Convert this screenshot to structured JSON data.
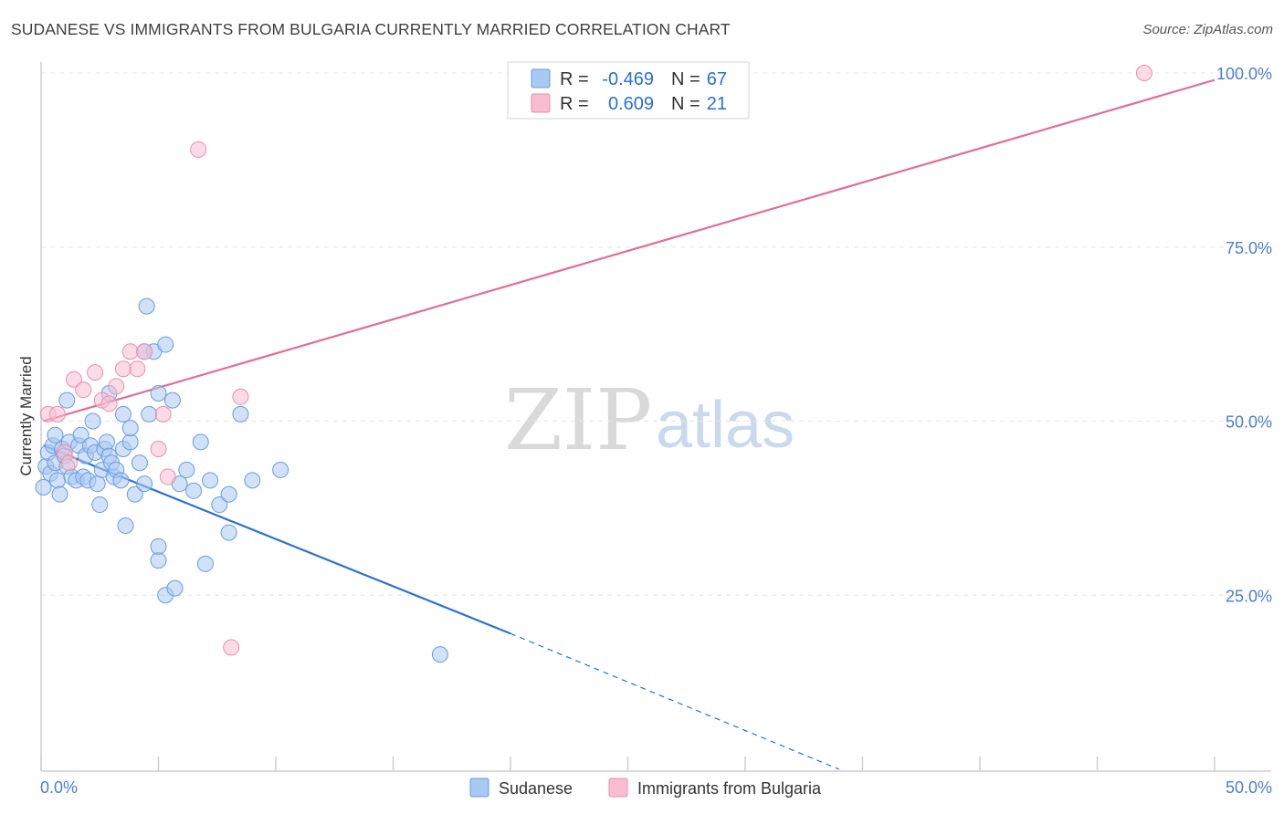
{
  "title": "SUDANESE VS IMMIGRANTS FROM BULGARIA CURRENTLY MARRIED CORRELATION CHART",
  "source": "Source: ZipAtlas.com",
  "watermark": {
    "zip": "ZIP",
    "atlas": "atlas"
  },
  "colors": {
    "blue_fill": "#a9c8f2",
    "blue_stroke": "#6a9de0",
    "blue_line": "#2a72d6",
    "pink_fill": "#f8bdd0",
    "pink_stroke": "#ea8fb0",
    "pink_line": "#e26d98",
    "grid": "#e4e4e4",
    "axis": "#cfcfcf",
    "tick_text": "#4a7fd0"
  },
  "stats": [
    {
      "r_label": "R =",
      "r_value": "-0.469",
      "n_label": "N =",
      "n_value": "67"
    },
    {
      "r_label": "R =",
      "r_value": "0.609",
      "n_label": "N =",
      "n_value": "21"
    }
  ],
  "chart_data": {
    "type": "scatter",
    "title": "SUDANESE VS IMMIGRANTS FROM BULGARIA CURRENTLY MARRIED CORRELATION CHART",
    "xlabel": "",
    "ylabel": "Currently Married",
    "xlim": [
      0,
      50
    ],
    "ylim": [
      0,
      102
    ],
    "x_tick_labels": [
      "0.0%",
      "50.0%"
    ],
    "y_ticks": [
      25,
      50,
      75,
      100
    ],
    "y_tick_labels": [
      "25.0%",
      "50.0%",
      "75.0%",
      "100.0%"
    ],
    "grid": true,
    "legend": [
      "Sudanese",
      "Immigrants from Bulgaria"
    ],
    "series": [
      {
        "name": "Sudanese",
        "r": -0.469,
        "n": 67,
        "trend": {
          "x_start": 0.1,
          "y_start": 46.5,
          "x_solid_end": 20,
          "y_solid_end": 19.5,
          "x_dash_end": 34,
          "y_dash_end": 0
        },
        "points": [
          [
            0.1,
            40.5
          ],
          [
            0.2,
            43.5
          ],
          [
            0.3,
            45.5
          ],
          [
            0.4,
            42.5
          ],
          [
            0.5,
            46.5
          ],
          [
            0.6,
            44
          ],
          [
            0.7,
            41.5
          ],
          [
            0.8,
            39.5
          ],
          [
            0.9,
            46
          ],
          [
            1.0,
            45
          ],
          [
            1.1,
            43.5
          ],
          [
            1.2,
            47
          ],
          [
            1.3,
            42
          ],
          [
            1.5,
            41.5
          ],
          [
            1.6,
            46.5
          ],
          [
            1.7,
            48
          ],
          [
            1.8,
            42
          ],
          [
            1.9,
            45
          ],
          [
            2.0,
            41.5
          ],
          [
            2.1,
            46.5
          ],
          [
            2.3,
            45.5
          ],
          [
            2.4,
            41
          ],
          [
            2.5,
            38
          ],
          [
            2.6,
            43
          ],
          [
            2.7,
            46
          ],
          [
            2.8,
            47
          ],
          [
            2.9,
            45
          ],
          [
            3.0,
            44
          ],
          [
            3.1,
            42
          ],
          [
            3.2,
            43
          ],
          [
            3.4,
            41.5
          ],
          [
            3.5,
            46
          ],
          [
            3.6,
            35
          ],
          [
            3.8,
            47
          ],
          [
            4.0,
            39.5
          ],
          [
            4.2,
            44
          ],
          [
            4.4,
            41
          ],
          [
            4.6,
            51
          ],
          [
            4.8,
            60
          ],
          [
            5.0,
            54
          ],
          [
            5.3,
            61
          ],
          [
            5.6,
            53
          ],
          [
            5.9,
            41
          ],
          [
            6.2,
            43
          ],
          [
            6.5,
            40
          ],
          [
            6.8,
            47
          ],
          [
            7.2,
            41.5
          ],
          [
            7.6,
            38
          ],
          [
            8.0,
            39.5
          ],
          [
            8.5,
            51
          ],
          [
            9.0,
            41.5
          ],
          [
            1.1,
            53
          ],
          [
            2.9,
            54
          ],
          [
            3.8,
            49
          ],
          [
            2.2,
            50
          ],
          [
            3.5,
            51
          ],
          [
            4.5,
            66.5
          ],
          [
            5.0,
            30
          ],
          [
            4.4,
            60
          ],
          [
            5.3,
            25
          ],
          [
            5.7,
            26
          ],
          [
            5.0,
            32
          ],
          [
            7.0,
            29.5
          ],
          [
            8.0,
            34
          ],
          [
            10.2,
            43
          ],
          [
            17.0,
            16.5
          ],
          [
            0.6,
            48
          ]
        ]
      },
      {
        "name": "Immigrants from Bulgaria",
        "r": 0.609,
        "n": 21,
        "trend": {
          "x_start": 0.1,
          "y_start": 50,
          "x_end": 50,
          "y_end": 99
        },
        "points": [
          [
            0.3,
            51
          ],
          [
            0.7,
            51
          ],
          [
            1.0,
            45.5
          ],
          [
            1.2,
            44
          ],
          [
            1.4,
            56
          ],
          [
            1.8,
            54.5
          ],
          [
            2.3,
            57
          ],
          [
            2.6,
            53
          ],
          [
            2.9,
            52.5
          ],
          [
            3.2,
            55
          ],
          [
            3.5,
            57.5
          ],
          [
            3.8,
            60
          ],
          [
            4.1,
            57.5
          ],
          [
            4.4,
            60
          ],
          [
            5.0,
            46
          ],
          [
            5.2,
            51
          ],
          [
            5.4,
            42
          ],
          [
            6.7,
            89
          ],
          [
            8.1,
            17.5
          ],
          [
            8.5,
            53.5
          ],
          [
            47.0,
            100
          ]
        ]
      }
    ]
  }
}
